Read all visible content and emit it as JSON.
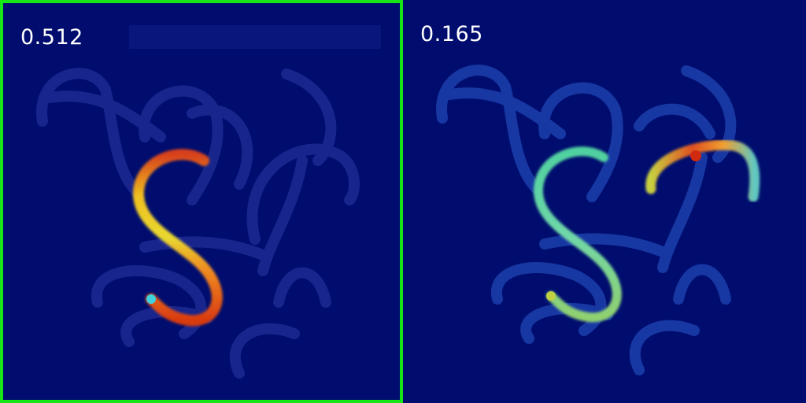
{
  "panels": [
    {
      "score": "0.512",
      "selected": true,
      "highlight_color": "#16e616"
    },
    {
      "score": "0.165",
      "selected": false
    }
  ],
  "colors": {
    "background": "#000d6e",
    "dim_hook": "#2a3aa8",
    "hot": "#d83a10",
    "warm": "#f0c020",
    "mid": "#40d0b0",
    "cool": "#2a6ad8"
  }
}
